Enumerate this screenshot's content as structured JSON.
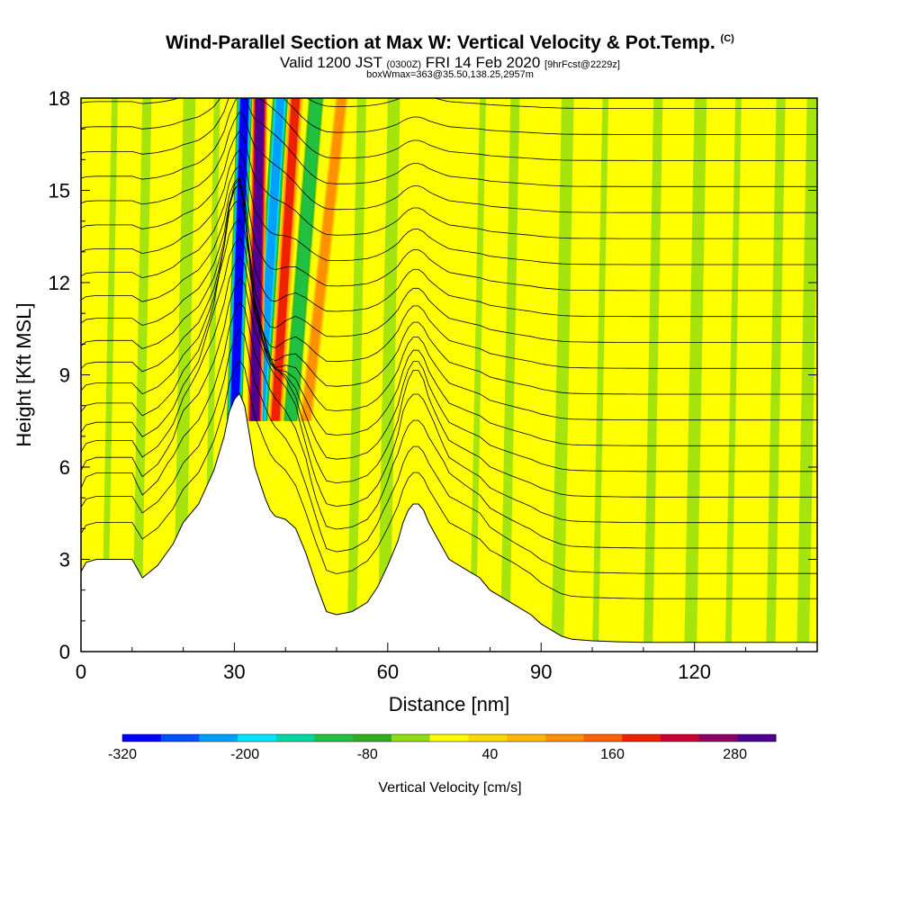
{
  "header": {
    "title": "Wind-Parallel Section at Max W: Vertical Velocity & Pot.Temp.",
    "title_mark": "(C)",
    "subtitle_prefix": "Valid 1200 JST",
    "subtitle_small1": "(0300Z)",
    "subtitle_main": "FRI 14 Feb 2020",
    "subtitle_small2": "[9hrFcst@2229z]",
    "subtitle2": "boxWmax=363@35.50,138.25,2957m"
  },
  "chart_data": {
    "type": "heatmap",
    "title": "Wind-Parallel Section at Max W: Vertical Velocity & Pot.Temp.",
    "xlabel": "Distance [nm]",
    "ylabel": "Height [Kft MSL]",
    "xlim": [
      0,
      144
    ],
    "ylim": [
      0,
      18
    ],
    "xticks": [
      0,
      30,
      60,
      90,
      120
    ],
    "xtick_labels": [
      "0",
      "30",
      "60",
      "90",
      "120"
    ],
    "yticks": [
      0,
      3,
      6,
      9,
      12,
      15,
      18
    ],
    "ytick_labels": [
      "0",
      "3",
      "6",
      "9",
      "12",
      "15",
      "18"
    ],
    "colorbar": {
      "label": "Vertical Velocity [cm/s]",
      "tick_values": [
        -320,
        -200,
        -80,
        40,
        160,
        280
      ],
      "tick_labels": [
        "-320",
        "-200",
        "-80",
        "40",
        "160",
        "280"
      ],
      "bin_edges": [
        -320,
        -280,
        -240,
        -200,
        -160,
        -120,
        -80,
        -40,
        0,
        40,
        80,
        120,
        160,
        200,
        240,
        280,
        320
      ],
      "colors": [
        "#0000ff",
        "#0050ff",
        "#00a0ff",
        "#00e8ff",
        "#00d8a0",
        "#20c040",
        "#30b020",
        "#90dd10",
        "#ffff00",
        "#ffd800",
        "#ffb800",
        "#ff9000",
        "#ff6000",
        "#ee2200",
        "#cc0030",
        "#900060",
        "#500090"
      ]
    },
    "terrain_kft": {
      "x": [
        0,
        1,
        3,
        10,
        12,
        15,
        18,
        20,
        23,
        26,
        28,
        29,
        30,
        31,
        32,
        33,
        34,
        36,
        37,
        38,
        40,
        42,
        44,
        46,
        48,
        50,
        53,
        56,
        58,
        60,
        62,
        63,
        64,
        65,
        66,
        67,
        68,
        70,
        72,
        75,
        78,
        80,
        84,
        88,
        90,
        92,
        94,
        96,
        100,
        105,
        110,
        115,
        120,
        126,
        130,
        136,
        140,
        144
      ],
      "y": [
        2.6,
        2.9,
        3.0,
        3.0,
        2.4,
        2.8,
        3.5,
        4.2,
        4.8,
        5.9,
        7.0,
        7.8,
        8.2,
        8.4,
        8.0,
        7.0,
        6.0,
        5.0,
        4.6,
        4.4,
        4.3,
        4.0,
        3.2,
        2.2,
        1.3,
        1.2,
        1.3,
        1.6,
        2.1,
        2.8,
        3.6,
        4.2,
        4.6,
        4.8,
        4.8,
        4.6,
        4.2,
        3.6,
        3.0,
        2.7,
        2.4,
        2.0,
        1.6,
        1.2,
        0.9,
        0.7,
        0.5,
        0.4,
        0.35,
        0.32,
        0.3,
        0.3,
        0.3,
        0.3,
        0.3,
        0.3,
        0.3,
        0.3
      ]
    },
    "updraft_columns": [
      {
        "x_base": 34,
        "x_top": 35,
        "width": 3,
        "value": 320
      },
      {
        "x_base": 38,
        "x_top": 42,
        "width": 3,
        "value": 200
      },
      {
        "x_base": 44,
        "x_top": 51,
        "width": 3,
        "value": 120
      }
    ],
    "downdraft_columns": [
      {
        "x_base": 30,
        "x_top": 32,
        "width": 3,
        "value": -300
      },
      {
        "x_base": 35,
        "x_top": 39,
        "width": 3,
        "value": -240
      },
      {
        "x_base": 41,
        "x_top": 46,
        "width": 3,
        "value": -120
      }
    ],
    "theta_contour_count": 20
  }
}
